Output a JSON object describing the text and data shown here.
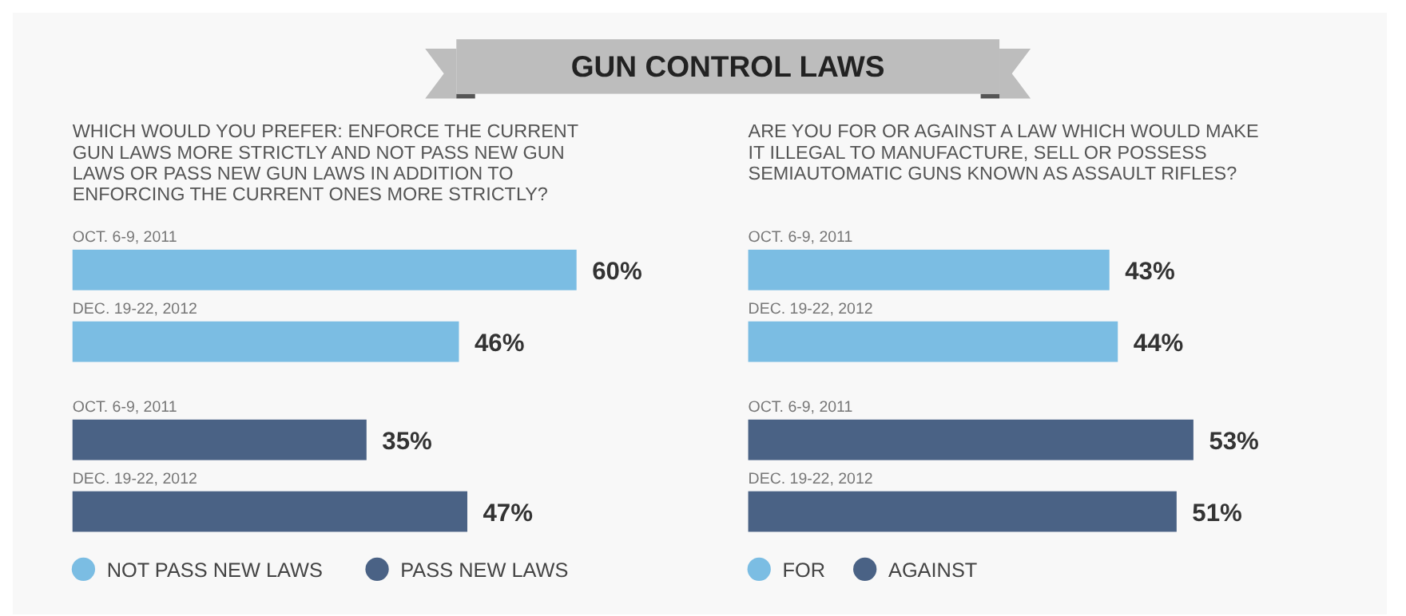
{
  "chart_data": [
    {
      "type": "bar",
      "orientation": "horizontal",
      "title": "GUN CONTROL LAWS",
      "subtitle": "WHICH WOULD YOU PREFER: ENFORCE THE CURRENT GUN LAWS MORE STRICTLY AND NOT PASS NEW GUN LAWS OR PASS NEW GUN LAWS IN ADDITION TO ENFORCING THE CURRENT ONES MORE STRICTLY?",
      "categories": [
        "OCT. 6-9, 2011",
        "DEC. 19-22, 2012",
        "OCT. 6-9, 2011",
        "DEC. 19-22, 2012"
      ],
      "legend": "bottom left",
      "series": [
        {
          "name": "NOT PASS NEW LAWS",
          "color": "#7bbde3",
          "values": [
            60,
            46,
            null,
            null
          ],
          "value_labels": [
            "60%",
            "46%",
            null,
            null
          ]
        },
        {
          "name": "PASS NEW LAWS",
          "color": "#4a6285",
          "values": [
            null,
            null,
            35,
            47
          ],
          "value_labels": [
            null,
            null,
            "35%",
            "47%"
          ]
        }
      ]
    },
    {
      "type": "bar",
      "orientation": "horizontal",
      "subtitle": "ARE YOU FOR OR AGAINST A LAW WHICH WOULD MAKE IT ILLEGAL TO MANUFACTURE, SELL OR POSSESS SEMIAUTOMATIC GUNS KNOWN AS ASSAULT RIFLES?",
      "categories": [
        "OCT. 6-9, 2011",
        "DEC. 19-22, 2012",
        "OCT. 6-9, 2011",
        "DEC. 19-22, 2012"
      ],
      "legend": "bottom left",
      "series": [
        {
          "name": "FOR",
          "color": "#7bbde3",
          "values": [
            43,
            44,
            null,
            null
          ],
          "value_labels": [
            "43%",
            "44%",
            null,
            null
          ]
        },
        {
          "name": "AGAINST",
          "color": "#4a6285",
          "values": [
            null,
            null,
            53,
            51
          ],
          "value_labels": [
            null,
            null,
            "53%",
            "51%"
          ]
        }
      ]
    }
  ]
}
